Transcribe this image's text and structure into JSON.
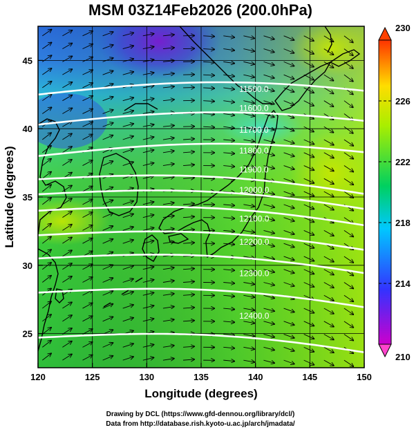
{
  "title": "MSM 03Z14Feb2026 (200.0hPa)",
  "x_axis": {
    "label": "Longitude (degrees)",
    "ticks": [
      "120",
      "125",
      "130",
      "135",
      "140",
      "145",
      "150"
    ],
    "range": [
      120,
      150
    ]
  },
  "y_axis": {
    "label": "Latitude  (degrees)",
    "ticks": [
      "25",
      "30",
      "35",
      "40",
      "45"
    ],
    "range": [
      22.5,
      47.5
    ]
  },
  "colorbar": {
    "ticks": [
      "230",
      "226",
      "222",
      "218",
      "214",
      "210"
    ],
    "min": 210,
    "max": 230,
    "colors": [
      "#cc00cc",
      "#3333ff",
      "#00c8ff",
      "#00d060",
      "#aaee00",
      "#ffdd00",
      "#ff3300"
    ]
  },
  "contours": [
    {
      "label": "11500.0",
      "lat_west": 42.5,
      "lat_label": 42.7
    },
    {
      "label": "11600.0",
      "lat_west": 40.3,
      "lat_label": 41.3
    },
    {
      "label": "11700.0",
      "lat_west": 38.0,
      "lat_label": 39.7
    },
    {
      "label": "11800.0",
      "lat_west": 36.3,
      "lat_label": 38.2
    },
    {
      "label": "11900.0",
      "lat_west": 35.2,
      "lat_label": 36.8
    },
    {
      "label": "12000.0",
      "lat_west": 34.0,
      "lat_label": 35.3
    },
    {
      "label": "12100.0",
      "lat_west": 32.2,
      "lat_label": 33.2
    },
    {
      "label": "12200.0",
      "lat_west": 30.5,
      "lat_label": 31.5
    },
    {
      "label": "12300.0",
      "lat_west": 28.0,
      "lat_label": 29.2
    },
    {
      "label": "12400.0",
      "lat_west": 24.7,
      "lat_label": 26.1
    }
  ],
  "credits": {
    "line1": "Drawing by DCL (https://www.gfd-dennou.org/library/dcl/)",
    "line2": "Data from http://database.rish.kyoto-u.ac.jp/arch/jmadata/"
  }
}
